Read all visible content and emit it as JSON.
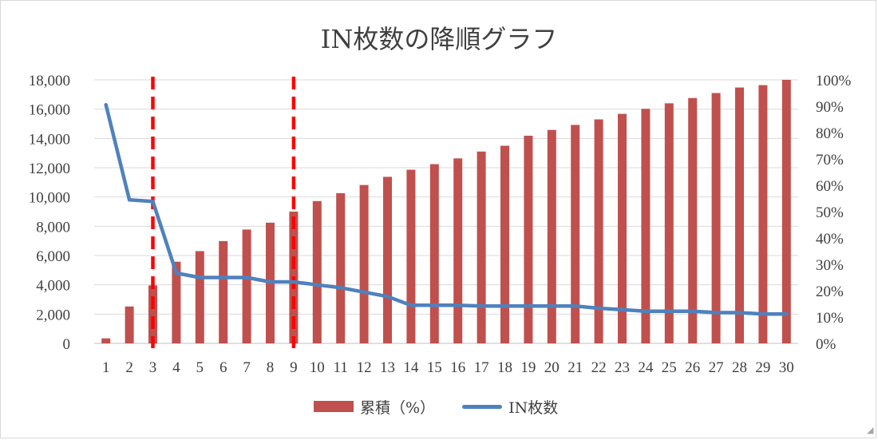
{
  "chart_data": {
    "type": "bar+line",
    "title": "IN枚数の降順グラフ",
    "categories": [
      "1",
      "2",
      "3",
      "4",
      "5",
      "6",
      "7",
      "8",
      "9",
      "10",
      "11",
      "12",
      "13",
      "14",
      "15",
      "16",
      "17",
      "18",
      "19",
      "20",
      "21",
      "22",
      "23",
      "24",
      "25",
      "26",
      "27",
      "28",
      "29",
      "30"
    ],
    "left_axis": {
      "min": 0,
      "max": 18000,
      "ticks": [
        0,
        2000,
        4000,
        6000,
        8000,
        10000,
        12000,
        14000,
        16000,
        18000
      ],
      "tick_labels": [
        "0",
        "2,000",
        "4,000",
        "6,000",
        "8,000",
        "10,000",
        "12,000",
        "14,000",
        "16,000",
        "18,000"
      ]
    },
    "right_axis": {
      "min": 0,
      "max": 100,
      "ticks": [
        0,
        10,
        20,
        30,
        40,
        50,
        60,
        70,
        80,
        90,
        100
      ],
      "tick_labels": [
        "0%",
        "10%",
        "20%",
        "30%",
        "40%",
        "50%",
        "60%",
        "70%",
        "80%",
        "90%",
        "100%"
      ]
    },
    "series": [
      {
        "name": "累積（%）",
        "type": "bar",
        "axis": "right",
        "color": "#c0504d",
        "values": [
          1.9,
          14.0,
          22.0,
          31.0,
          35.0,
          38.8,
          43.2,
          45.8,
          50.0,
          54.0,
          57.0,
          60.1,
          63.2,
          65.9,
          68.0,
          70.2,
          72.8,
          75.0,
          78.8,
          81.0,
          82.9,
          85.0,
          87.1,
          89.0,
          91.1,
          93.1,
          95.0,
          97.1,
          98.0,
          100.0
        ]
      },
      {
        "name": "IN枚数",
        "type": "line",
        "axis": "left",
        "color": "#4f81bd",
        "values": [
          16300,
          9800,
          9700,
          4800,
          4500,
          4500,
          4500,
          4200,
          4200,
          4000,
          3800,
          3500,
          3200,
          2600,
          2600,
          2600,
          2550,
          2550,
          2550,
          2550,
          2550,
          2400,
          2300,
          2200,
          2200,
          2200,
          2100,
          2100,
          2000,
          2000
        ]
      }
    ],
    "reference_lines": [
      {
        "at_category": "3",
        "color": "#ff0000",
        "style": "dashed"
      },
      {
        "at_category": "9",
        "color": "#ff0000",
        "style": "dashed"
      }
    ],
    "grid": true,
    "legend": "bottom"
  }
}
